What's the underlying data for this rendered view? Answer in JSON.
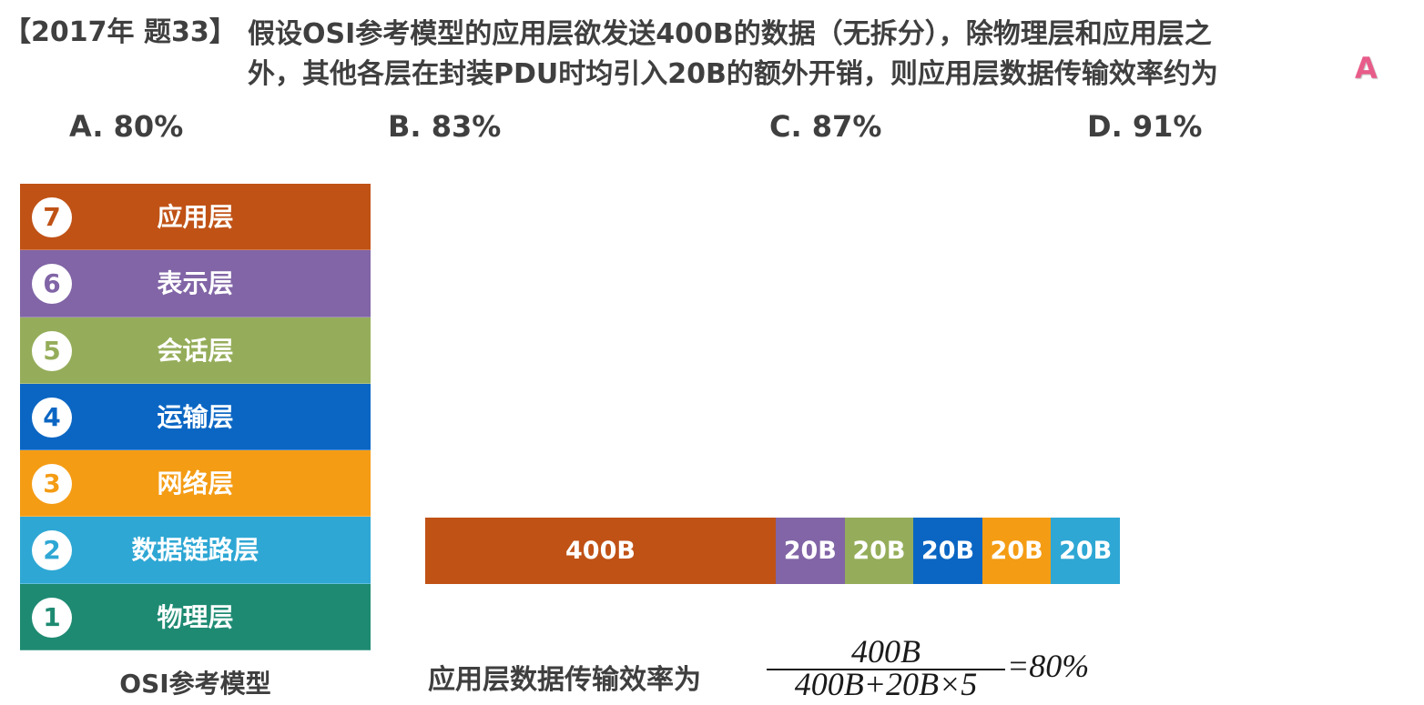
{
  "question": {
    "tag": "【2017年 题33】",
    "line1": "假设OSI参考模型的应用层欲发送400B的数据（无拆分），除物理层和应用层之",
    "line2": "外，其他各层在封装PDU时均引入20B的额外开销，则应用层数据传输效率约为",
    "answer": "A"
  },
  "options": [
    {
      "label": "A. 80%"
    },
    {
      "label": "B. 83%"
    },
    {
      "label": "C. 87%"
    },
    {
      "label": "D. 91%"
    }
  ],
  "osi_model": {
    "caption": "OSI参考模型",
    "layers": [
      {
        "num": "7",
        "name": "应用层",
        "color": "#c05216"
      },
      {
        "num": "6",
        "name": "表示层",
        "color": "#8165a6"
      },
      {
        "num": "5",
        "name": "会话层",
        "color": "#95ad5a"
      },
      {
        "num": "4",
        "name": "运输层",
        "color": "#0b66c3"
      },
      {
        "num": "3",
        "name": "网络层",
        "color": "#f49c14"
      },
      {
        "num": "2",
        "name": "数据链路层",
        "color": "#2ea7d4"
      },
      {
        "num": "1",
        "name": "物理层",
        "color": "#1e8a72"
      }
    ]
  },
  "pdu": {
    "data_segment": "400B",
    "data_color": "#c05216",
    "header_segments": [
      {
        "label": "20B",
        "color": "#8165a6"
      },
      {
        "label": "20B",
        "color": "#95ad5a"
      },
      {
        "label": "20B",
        "color": "#0b66c3"
      },
      {
        "label": "20B",
        "color": "#f49c14"
      },
      {
        "label": "20B",
        "color": "#2ea7d4"
      }
    ]
  },
  "efficiency": {
    "label": "应用层数据传输效率为",
    "numerator": "400B",
    "denominator": "400B+20B×5",
    "result": "=80%"
  }
}
